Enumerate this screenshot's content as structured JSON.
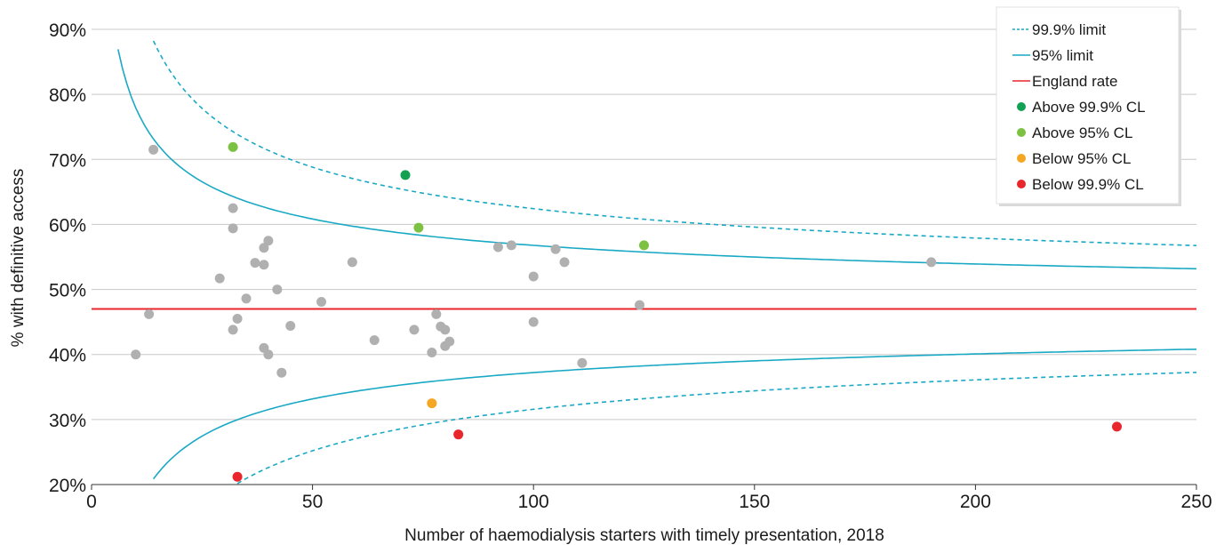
{
  "chart_data": {
    "type": "scatter",
    "xlabel": "Number of haemodialysis starters with timely presentation, 2018",
    "ylabel": "% with definitive access",
    "xlim": [
      0,
      250
    ],
    "ylim": [
      20,
      90
    ],
    "x_ticks": [
      0,
      50,
      100,
      150,
      200,
      250
    ],
    "y_ticks": [
      20,
      30,
      40,
      50,
      60,
      70,
      80,
      90
    ],
    "y_tick_suffix": "%",
    "grid": "horizontal",
    "legend_position": "top-right",
    "england_rate": 47.0,
    "colors": {
      "limit": "#1aa9c4",
      "england": "#e8262b",
      "gray": "#b0b0b0",
      "above999": "#12a052",
      "above95": "#7dc142",
      "below95": "#f5a623",
      "below999": "#e8262b"
    },
    "legend": [
      {
        "label": "99.9% limit",
        "kind": "dashed",
        "color": "#1aa9c4"
      },
      {
        "label": "95% limit",
        "kind": "line",
        "color": "#1aa9c4"
      },
      {
        "label": "England rate",
        "kind": "line",
        "color": "#e8262b"
      },
      {
        "label": "Above 99.9% CL",
        "kind": "dot",
        "color": "#12a052"
      },
      {
        "label": "Above 95% CL",
        "kind": "dot",
        "color": "#7dc142"
      },
      {
        "label": "Below 95% CL",
        "kind": "dot",
        "color": "#f5a623"
      },
      {
        "label": "Below 99.9% CL",
        "kind": "dot",
        "color": "#e8262b"
      }
    ],
    "series": [
      {
        "category": "within",
        "color": "#b0b0b0",
        "points": [
          [
            10,
            40.0
          ],
          [
            13,
            46.2
          ],
          [
            14,
            71.5
          ],
          [
            29,
            51.7
          ],
          [
            32,
            62.5
          ],
          [
            32,
            59.4
          ],
          [
            32,
            43.8
          ],
          [
            33,
            45.5
          ],
          [
            35,
            48.6
          ],
          [
            37,
            54.1
          ],
          [
            39,
            56.4
          ],
          [
            39,
            53.8
          ],
          [
            39,
            41.0
          ],
          [
            40,
            57.5
          ],
          [
            40,
            40.0
          ],
          [
            42,
            50.0
          ],
          [
            43,
            37.2
          ],
          [
            45,
            44.4
          ],
          [
            52,
            48.1
          ],
          [
            59,
            54.2
          ],
          [
            64,
            42.2
          ],
          [
            73,
            43.8
          ],
          [
            77,
            40.3
          ],
          [
            78,
            46.2
          ],
          [
            79,
            44.3
          ],
          [
            80,
            43.8
          ],
          [
            80,
            41.3
          ],
          [
            81,
            42.0
          ],
          [
            92,
            56.5
          ],
          [
            95,
            56.8
          ],
          [
            100,
            52.0
          ],
          [
            100,
            45.0
          ],
          [
            105,
            56.2
          ],
          [
            107,
            54.2
          ],
          [
            111,
            38.7
          ],
          [
            124,
            47.6
          ],
          [
            190,
            54.2
          ]
        ]
      },
      {
        "category": "above999",
        "color": "#12a052",
        "points": [
          [
            71,
            67.6
          ]
        ]
      },
      {
        "category": "above95",
        "color": "#7dc142",
        "points": [
          [
            32,
            71.9
          ],
          [
            74,
            59.5
          ],
          [
            125,
            56.8
          ]
        ]
      },
      {
        "category": "below95",
        "color": "#f5a623",
        "points": [
          [
            77,
            32.5
          ]
        ]
      },
      {
        "category": "below999",
        "color": "#e8262b",
        "points": [
          [
            33,
            21.2
          ],
          [
            83,
            27.7
          ],
          [
            232,
            28.9
          ]
        ]
      }
    ]
  }
}
